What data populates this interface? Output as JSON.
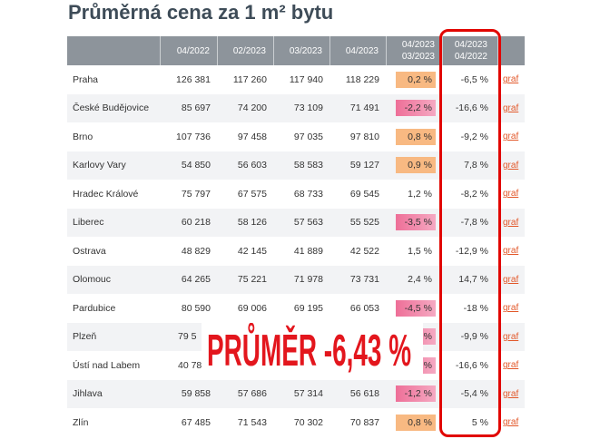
{
  "chart_data": {
    "type": "table",
    "title": "Průměrná cena za 1 m² bytu",
    "columns": [
      [],
      [
        "04/2022"
      ],
      [
        "02/2023"
      ],
      [
        "03/2023"
      ],
      [
        "04/2023"
      ],
      [
        "04/2023",
        "03/2023"
      ],
      [
        "04/2023",
        "04/2022"
      ],
      []
    ],
    "rows": [
      {
        "city": "Praha",
        "values": [
          "126 381",
          "117 260",
          "117 940",
          "118 229"
        ],
        "vs_03_2023": "0,2 %",
        "highlight": "orange",
        "vs_04_2022": "-6,5 %",
        "link": "graf"
      },
      {
        "city": "České Budějovice",
        "values": [
          "85 697",
          "74 200",
          "73 109",
          "71 491"
        ],
        "vs_03_2023": "-2,2 %",
        "highlight": "pink",
        "vs_04_2022": "-16,6 %",
        "link": "graf"
      },
      {
        "city": "Brno",
        "values": [
          "107 736",
          "97 458",
          "97 035",
          "97 810"
        ],
        "vs_03_2023": "0,8 %",
        "highlight": "orange",
        "vs_04_2022": "-9,2 %",
        "link": "graf"
      },
      {
        "city": "Karlovy Vary",
        "values": [
          "54 850",
          "56 603",
          "58 583",
          "59 127"
        ],
        "vs_03_2023": "0,9 %",
        "highlight": "orange",
        "vs_04_2022": "7,8 %",
        "link": "graf"
      },
      {
        "city": "Hradec Králové",
        "values": [
          "75 797",
          "67 575",
          "68 733",
          "69 545"
        ],
        "vs_03_2023": "1,2 %",
        "highlight": null,
        "vs_04_2022": "-8,2 %",
        "link": "graf"
      },
      {
        "city": "Liberec",
        "values": [
          "60 218",
          "58 126",
          "57 563",
          "55 525"
        ],
        "vs_03_2023": "-3,5 %",
        "highlight": "pink",
        "vs_04_2022": "-7,8 %",
        "link": "graf"
      },
      {
        "city": "Ostrava",
        "values": [
          "48 829",
          "42 145",
          "41 889",
          "42 522"
        ],
        "vs_03_2023": "1,5 %",
        "highlight": null,
        "vs_04_2022": "-12,9 %",
        "link": "graf"
      },
      {
        "city": "Olomouc",
        "values": [
          "64 265",
          "75 221",
          "71 978",
          "73 731"
        ],
        "vs_03_2023": "2,4 %",
        "highlight": null,
        "vs_04_2022": "14,7 %",
        "link": "graf"
      },
      {
        "city": "Pardubice",
        "values": [
          "80 590",
          "69 006",
          "69 195",
          "66 053"
        ],
        "vs_03_2023": "-4,5 %",
        "highlight": "pink",
        "vs_04_2022": "-18 %",
        "link": "graf"
      },
      {
        "city": "Plzeň",
        "values": [
          "79 5",
          "",
          "",
          ""
        ],
        "vs_03_2023": "%",
        "highlight": "pink",
        "vs_04_2022": "-9,9 %",
        "link": "graf"
      },
      {
        "city": "Ústí nad Labem",
        "values": [
          "40 78",
          "",
          "",
          ""
        ],
        "vs_03_2023": "%",
        "highlight": "pink",
        "vs_04_2022": "-16,6 %",
        "link": "graf"
      },
      {
        "city": "Jihlava",
        "values": [
          "59 858",
          "57 686",
          "57 314",
          "56 618"
        ],
        "vs_03_2023": "-1,2 %",
        "highlight": "pink",
        "vs_04_2022": "-5,4 %",
        "link": "graf"
      },
      {
        "city": "Zlín",
        "values": [
          "67 485",
          "71 543",
          "70 302",
          "70 837"
        ],
        "vs_03_2023": "0,8 %",
        "highlight": "orange",
        "vs_04_2022": "5 %",
        "link": "graf"
      }
    ]
  },
  "overlay": {
    "text": "PRŮMĚR -6,43 %"
  },
  "colors": {
    "title": "#3e4c58",
    "header_bg": "#8d949b",
    "highlight_orange": "#f8b982",
    "highlight_pink": "#ee6f98",
    "highlight_pink_light": "#f5a9c2",
    "outline_red": "#e10600",
    "overlay_text": "#e3161d",
    "link": "#e2582a"
  }
}
